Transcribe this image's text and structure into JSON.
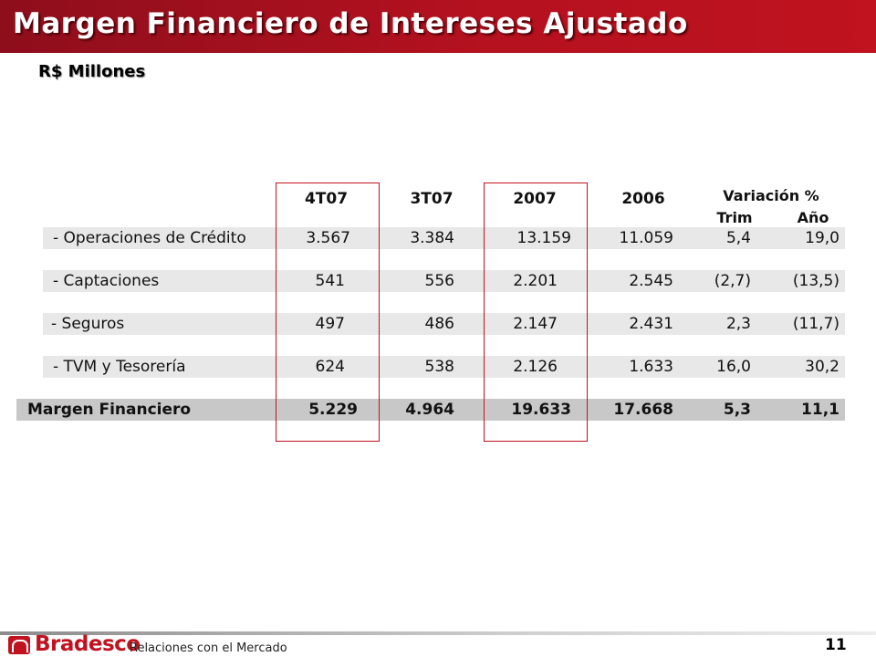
{
  "header": {
    "title": "Margen Financiero de Intereses Ajustado",
    "subtitle": "R$ Millones"
  },
  "table": {
    "columns": [
      "4T07",
      "3T07",
      "2007",
      "2006"
    ],
    "variation": {
      "label": "Variación %",
      "trim": "Trim",
      "anio": "Año"
    },
    "rows": [
      {
        "label": "-  Operaciones de Crédito",
        "values": [
          "3.567",
          "3.384",
          "13.159",
          "11.059",
          "5,4",
          "19,0"
        ]
      },
      {
        "label": "-  Captaciones",
        "values": [
          "541",
          "556",
          "2.201",
          "2.545",
          "(2,7)",
          "(13,5)"
        ]
      },
      {
        "label": "- Seguros",
        "values": [
          "497",
          "486",
          "2.147",
          "2.431",
          "2,3",
          "(11,7)"
        ]
      },
      {
        "label": "- TVM y Tesorería",
        "values": [
          "624",
          "538",
          "2.126",
          "1.633",
          "16,0",
          "30,2"
        ]
      }
    ],
    "total": {
      "label": "Margen Financiero",
      "values": [
        "5.229",
        "4.964",
        "19.633",
        "17.668",
        "5,3",
        "11,1"
      ]
    }
  },
  "footer": {
    "brand": "Bradesco",
    "section": "Relaciones con el Mercado",
    "page": "11"
  },
  "colors": {
    "brand_red": "#c0121f",
    "band_gray": "#e8e8e8",
    "total_gray": "#c8c8c8"
  },
  "icons": [
    "bradesco-logo-icon"
  ]
}
